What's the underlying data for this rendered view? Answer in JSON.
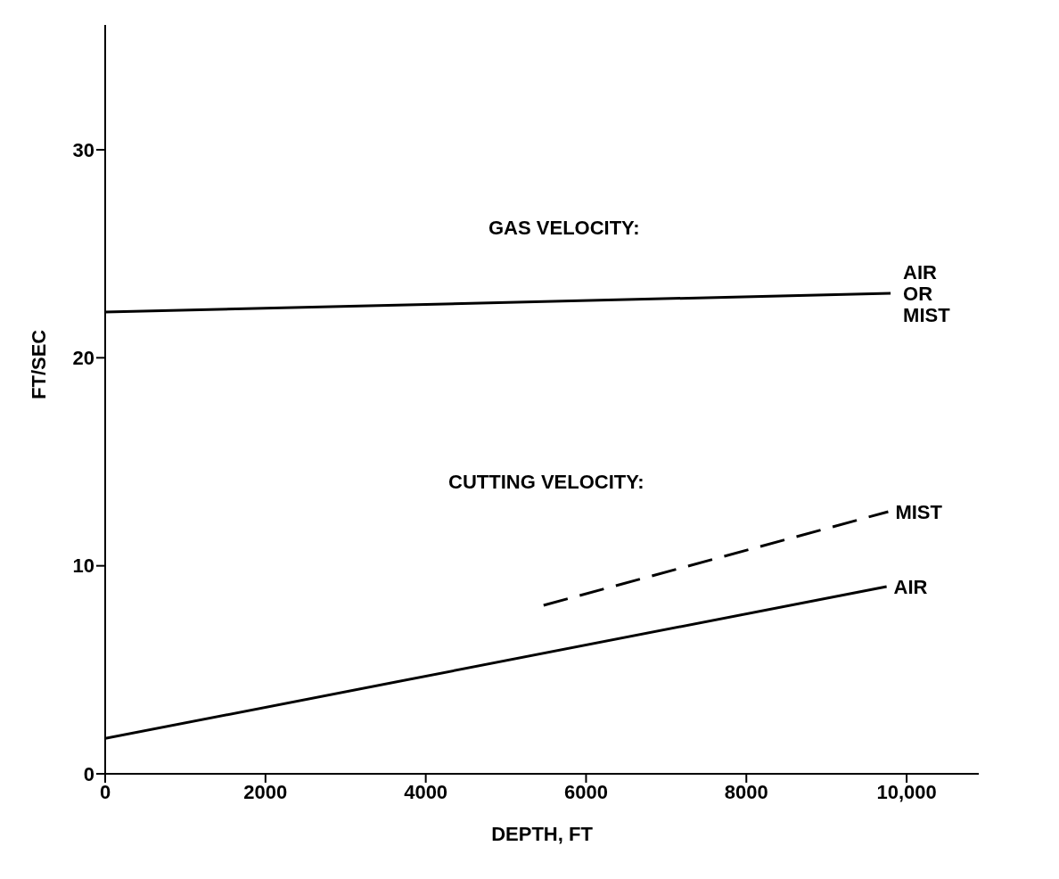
{
  "chart_data": {
    "type": "line",
    "xlabel": "DEPTH, FT",
    "ylabel": "FT/SEC",
    "annotations": [
      "GAS VELOCITY:",
      "CUTTING VELOCITY:"
    ],
    "series": [
      {
        "name": "AIR OR MIST",
        "color": "#000000",
        "x": [
          0,
          9800
        ],
        "values": [
          22.2,
          23.1
        ],
        "line_style": "solid"
      },
      {
        "name": "MIST",
        "color": "#000000",
        "x": [
          5470,
          9770
        ],
        "values": [
          8.1,
          12.6
        ],
        "line_style": "dashed"
      },
      {
        "name": "AIR",
        "color": "#000000",
        "x": [
          0,
          9750
        ],
        "values": [
          1.7,
          9.0
        ],
        "line_style": "solid"
      }
    ],
    "xlim": [
      0,
      10900
    ],
    "ylim": [
      0,
      36
    ],
    "xticks": [
      0,
      2000,
      4000,
      6000,
      8000,
      {
        "value": 10000,
        "label": "10,000"
      }
    ],
    "yticks": [
      0,
      10,
      20,
      30
    ],
    "grid": false,
    "legend": false,
    "marker": "none"
  }
}
